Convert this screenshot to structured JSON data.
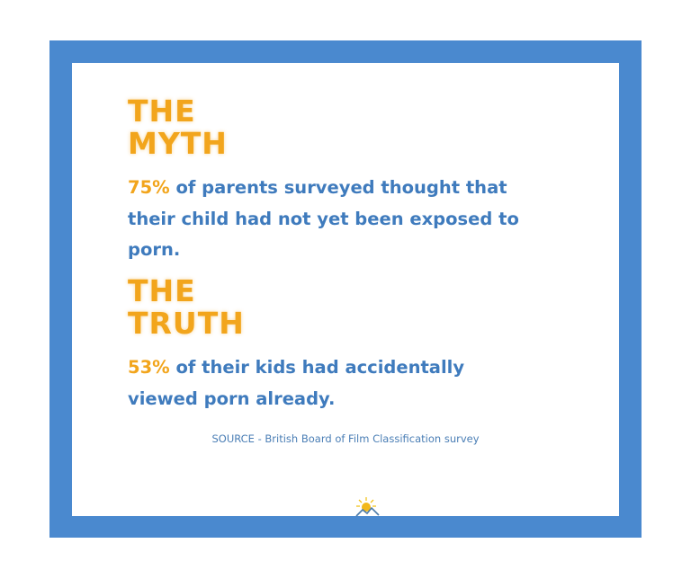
{
  "myth": {
    "heading_line1": "THE",
    "heading_line2": "MYTH",
    "percent": "75%",
    "text": " of parents surveyed thought that their child had not yet been exposed to porn."
  },
  "truth": {
    "heading_line1": "THE",
    "heading_line2": "TRUTH",
    "percent": "53%",
    "text": " of their kids had accidentally viewed porn already."
  },
  "source": "SOURCE - British Board of Film Classification survey",
  "logo_icon": "sun-over-mountains-icon",
  "colors": {
    "frame": "#4a89cf",
    "heading": "#f2a51c",
    "body": "#3f7bbd"
  }
}
